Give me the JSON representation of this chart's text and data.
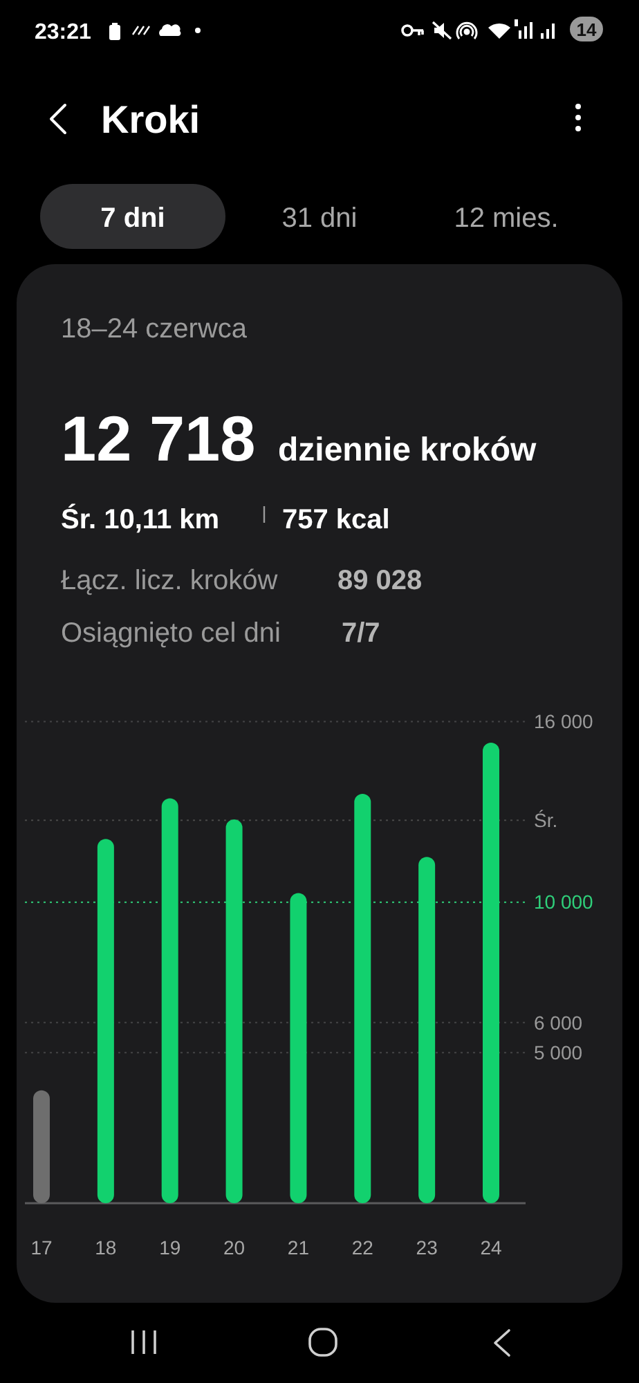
{
  "chart_data": {
    "type": "bar",
    "title": "Kroki",
    "subtitle": "18–24 czerwca",
    "categories": [
      "17",
      "18",
      "19",
      "20",
      "21",
      "22",
      "23",
      "24"
    ],
    "values": [
      3750,
      12100,
      13450,
      12750,
      10300,
      13600,
      11500,
      15300
    ],
    "colors": [
      "#6e6e6e",
      "#12d16e",
      "#12d16e",
      "#12d16e",
      "#12d16e",
      "#12d16e",
      "#12d16e",
      "#12d16e"
    ],
    "ylim": [
      0,
      16000
    ],
    "yticks": [
      {
        "value": 5000,
        "label": "5 000"
      },
      {
        "value": 6000,
        "label": "6 000"
      },
      {
        "value": 16000,
        "label": "16 000"
      }
    ],
    "grid": "y",
    "ref_lines": [
      {
        "axis": "y",
        "value": 12718,
        "label": "Śr.",
        "color": "#4a4a4a",
        "line_style": "dotted"
      },
      {
        "axis": "y",
        "value": 10000,
        "label": "10 000",
        "color": "#2fcf7a",
        "line_style": "dotted"
      }
    ],
    "annotations": [
      "23:21",
      "14",
      "7 dni",
      "31 dni",
      "12 mies.",
      "12 718",
      "dziennie kroków",
      "Śr. 10,11 km",
      "757 kcal",
      "Łącz. licz. kroków",
      "89 028",
      "Osiągnięto cel dni",
      "7/7"
    ]
  }
}
